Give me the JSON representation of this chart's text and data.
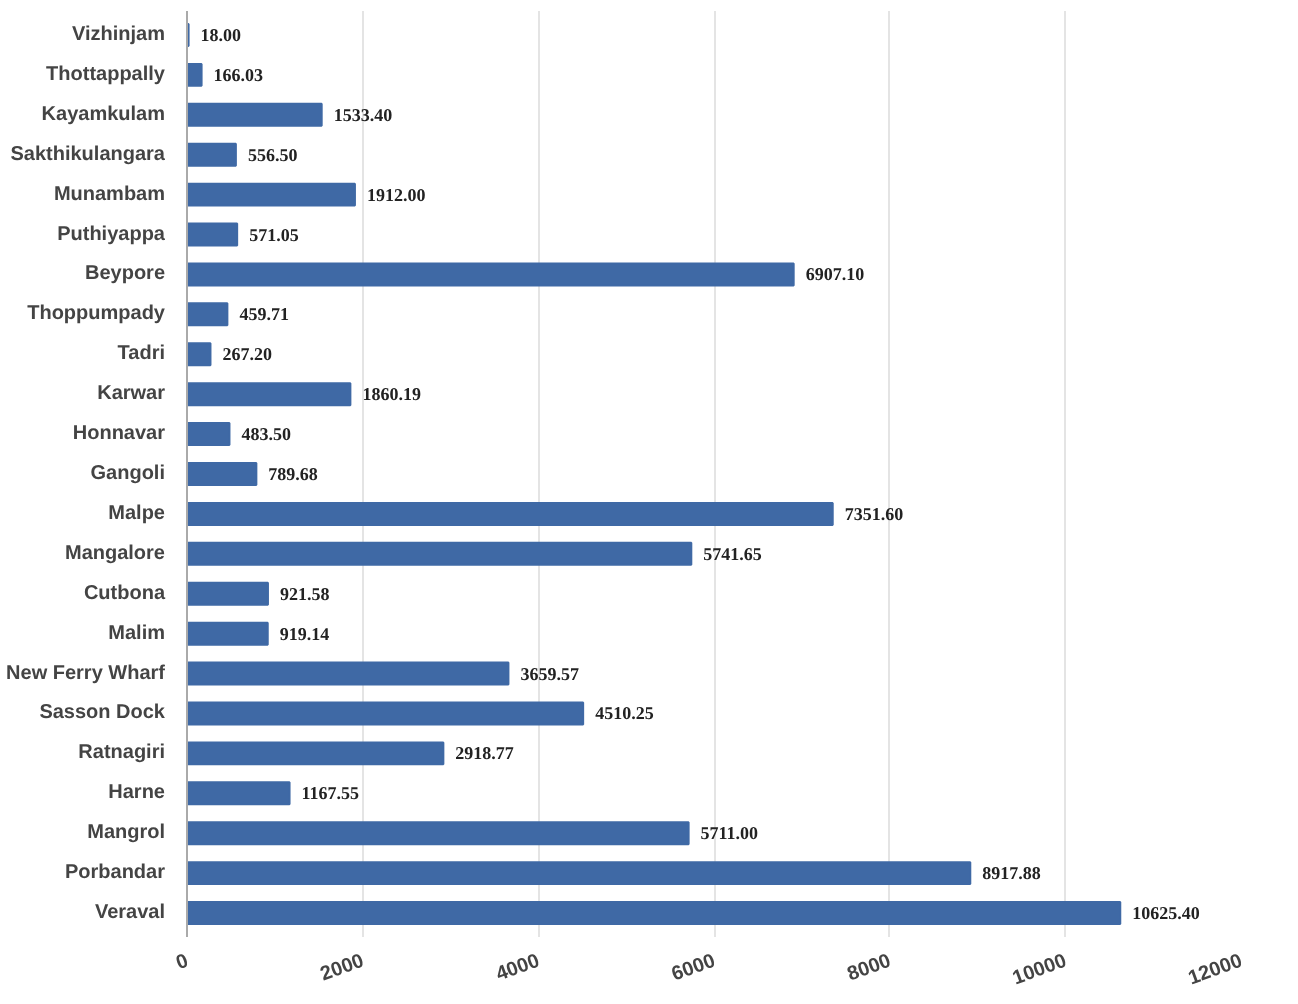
{
  "chart_data": {
    "type": "bar",
    "orientation": "horizontal",
    "categories": [
      "Vizhinjam",
      "Thottappally",
      "Kayamkulam",
      "Sakthikulangara",
      "Munambam",
      "Puthiyappa",
      "Beypore",
      "Thoppumpady",
      "Tadri",
      "Karwar",
      "Honnavar",
      "Gangoli",
      "Malpe",
      "Mangalore",
      "Cutbona",
      "Malim",
      "New Ferry Wharf",
      "Sasson Dock",
      "Ratnagiri",
      "Harne",
      "Mangrol",
      "Porbandar",
      "Veraval"
    ],
    "values": [
      18.0,
      166.03,
      1533.4,
      556.5,
      1912.0,
      571.05,
      6907.1,
      459.71,
      267.2,
      1860.19,
      483.5,
      789.68,
      7351.6,
      5741.65,
      921.58,
      919.14,
      3659.57,
      4510.25,
      2918.77,
      1167.55,
      5711.0,
      8917.88,
      10625.4
    ],
    "value_labels": [
      "18.00",
      "166.03",
      "1533.40",
      "556.50",
      "1912.00",
      "571.05",
      "6907.10",
      "459.71",
      "267.20",
      "1860.19",
      "483.50",
      "789.68",
      "7351.60",
      "5741.65",
      "921.58",
      "919.14",
      "3659.57",
      "4510.25",
      "2918.77",
      "1167.55",
      "5711.00",
      "8917.88",
      "10625.40"
    ],
    "color": "#3f69a5",
    "xlim": [
      0,
      12000
    ],
    "xticks": [
      0,
      2000,
      4000,
      6000,
      8000,
      10000,
      12000
    ],
    "grid": "x"
  }
}
